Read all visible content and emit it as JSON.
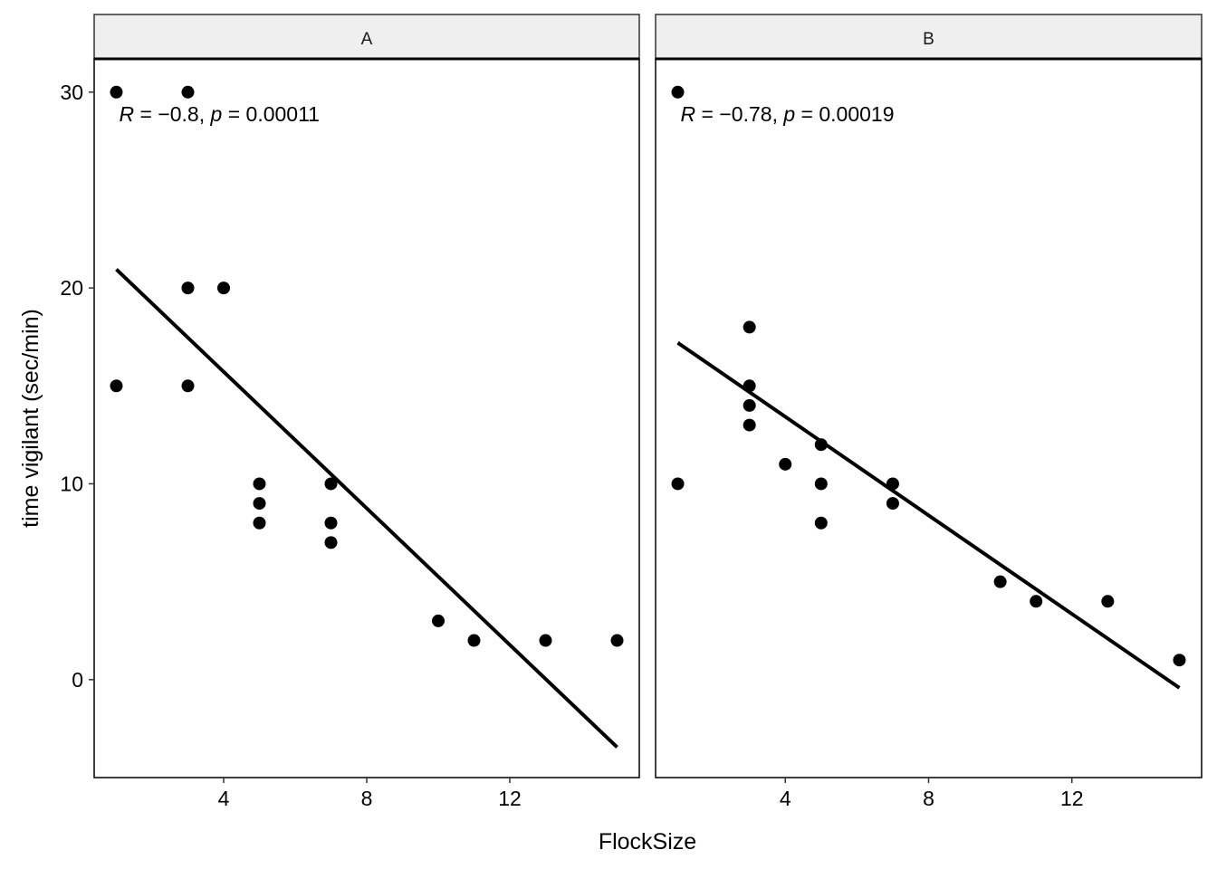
{
  "chart_data": {
    "type": "scatter",
    "xlabel": "FlockSize",
    "ylabel": "time vigilant (sec/min)",
    "xlim": [
      0.38,
      15.62
    ],
    "ylim": [
      -5,
      31.7
    ],
    "x_ticks": [
      4,
      8,
      12
    ],
    "y_ticks": [
      0,
      10,
      20,
      30
    ],
    "grid": false,
    "colors": {
      "points": "#000000",
      "line": "#000000",
      "strip_fill": "#efefef"
    },
    "panels": [
      {
        "strip": "A",
        "annotation": {
          "r_label": "R",
          "r_text": " = −0.8, ",
          "p_label": "p",
          "p_text": " = 0.00011"
        },
        "points": [
          [
            1,
            30
          ],
          [
            3,
            30
          ],
          [
            3,
            20
          ],
          [
            4,
            20
          ],
          [
            1,
            15
          ],
          [
            3,
            15
          ],
          [
            5,
            10
          ],
          [
            5,
            9
          ],
          [
            5,
            8
          ],
          [
            7,
            10
          ],
          [
            7,
            8
          ],
          [
            7,
            7
          ],
          [
            10,
            3
          ],
          [
            11,
            2
          ],
          [
            13,
            2
          ],
          [
            15,
            2
          ]
        ],
        "fit": [
          [
            1,
            20.95
          ],
          [
            15,
            -3.45
          ]
        ]
      },
      {
        "strip": "B",
        "annotation": {
          "r_label": "R",
          "r_text": " = −0.78, ",
          "p_label": "p",
          "p_text": " = 0.00019"
        },
        "points": [
          [
            1,
            30
          ],
          [
            1,
            10
          ],
          [
            3,
            18
          ],
          [
            3,
            15
          ],
          [
            3,
            14
          ],
          [
            3,
            13
          ],
          [
            4,
            11
          ],
          [
            5,
            12
          ],
          [
            5,
            10
          ],
          [
            5,
            8
          ],
          [
            7,
            10
          ],
          [
            7,
            9
          ],
          [
            10,
            5
          ],
          [
            11,
            4
          ],
          [
            13,
            4
          ],
          [
            15,
            1
          ]
        ],
        "fit": [
          [
            1,
            17.2
          ],
          [
            15,
            -0.42
          ]
        ]
      }
    ]
  }
}
